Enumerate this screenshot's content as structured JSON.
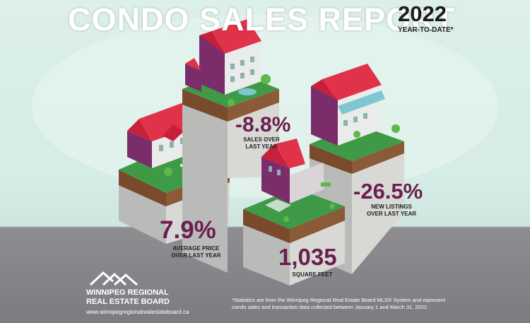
{
  "header": {
    "title": "CONDO SALES REPORT",
    "year": "2022",
    "period": "YEAR-TO-DATE*"
  },
  "stats": [
    {
      "value": "-8.8%",
      "label_line1": "SALES OVER",
      "label_line2": "LAST YEAR"
    },
    {
      "value": "7.9%",
      "label_line1": "AVERAGE PRICE",
      "label_line2": "OVER LAST YEAR"
    },
    {
      "value": "1,035",
      "label_line1": "SQUARE FEET",
      "label_line2": ""
    },
    {
      "value": "-26.5%",
      "label_line1": "NEW LISTINGS",
      "label_line2": "OVER LAST YEAR"
    }
  ],
  "logo": {
    "line1": "WINNIPEG REGIONAL",
    "line2": "REAL ESTATE BOARD",
    "url": "www.winnipegregionalrealestateboard.ca"
  },
  "footnote": {
    "line1": "*Statistics are from the Winnipeg Regional Real Estate Board MLS® System and represent",
    "line2": "condo sales and transaction data collected between January 1 and March 31, 2022."
  },
  "colors": {
    "accent": "#6b1e4f",
    "roof": "#e0334a",
    "wall": "#7b2d6b",
    "grass": "#3f9a48",
    "soil": "#7a4a2c"
  }
}
